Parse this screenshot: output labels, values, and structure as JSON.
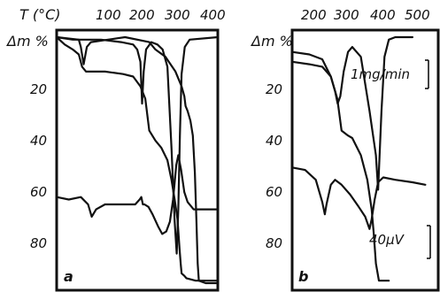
{
  "chart_data": [
    {
      "panel": "a",
      "type": "line",
      "x_axis_label": "T (°C)",
      "y_axis_label": "Δm %",
      "x_ticks": [
        "100",
        "200",
        "300",
        "400"
      ],
      "y_ticks": [
        "20",
        "40",
        "60",
        "80"
      ],
      "ylim": [
        0,
        100
      ],
      "ylim_inverted": true,
      "grid": false,
      "series": [
        {
          "values": [
            [
              40,
              0
            ],
            [
              95,
              1
            ],
            [
              100,
              4
            ],
            [
              107,
              11
            ],
            [
              115,
              4
            ],
            [
              125,
              2
            ],
            [
              210,
              0
            ],
            [
              270,
              2
            ],
            [
              285,
              5
            ],
            [
              310,
              8
            ],
            [
              335,
              14
            ],
            [
              350,
              20
            ],
            [
              357,
              24
            ],
            [
              360,
              28
            ],
            [
              365,
              30
            ],
            [
              372,
              34
            ],
            [
              378,
              40
            ],
            [
              383,
              55
            ],
            [
              387,
              75
            ],
            [
              390,
              92
            ],
            [
              393,
              99
            ],
            [
              410,
              100
            ],
            [
              440,
              100
            ]
          ]
        },
        {
          "values": [
            [
              40,
              0
            ],
            [
              60,
              3
            ],
            [
              80,
              5
            ],
            [
              95,
              7
            ],
            [
              103,
              12
            ],
            [
              113,
              14
            ],
            [
              160,
              14
            ],
            [
              205,
              15
            ],
            [
              230,
              16
            ],
            [
              248,
              20
            ],
            [
              260,
              25
            ],
            [
              270,
              38
            ],
            [
              285,
              42
            ],
            [
              300,
              45
            ],
            [
              315,
              50
            ],
            [
              325,
              58
            ],
            [
              333,
              66
            ],
            [
              340,
              74
            ],
            [
              345,
              86
            ],
            [
              348,
              92
            ],
            [
              350,
              96
            ],
            [
              357,
              97
            ],
            [
              362,
              98
            ],
            [
              385,
              99
            ],
            [
              440,
              99
            ]
          ]
        },
        {
          "values": [
            [
              40,
              0
            ],
            [
              80,
              1
            ],
            [
              150,
              1
            ],
            [
              200,
              2
            ],
            [
              230,
              3
            ],
            [
              240,
              5
            ],
            [
              248,
              10
            ],
            [
              252,
              27
            ],
            [
              256,
              14
            ],
            [
              262,
              5
            ],
            [
              275,
              2
            ],
            [
              290,
              3
            ],
            [
              303,
              5
            ],
            [
              315,
              12
            ],
            [
              325,
              45
            ],
            [
              333,
              75
            ],
            [
              338,
              88
            ],
            [
              342,
              70
            ],
            [
              346,
              40
            ],
            [
              350,
              15
            ],
            [
              358,
              4
            ],
            [
              370,
              1
            ],
            [
              440,
              0
            ]
          ]
        },
        {
          "values": [
            [
              40,
              65
            ],
            [
              70,
              66
            ],
            [
              100,
              65
            ],
            [
              118,
              68
            ],
            [
              127,
              73
            ],
            [
              138,
              70
            ],
            [
              160,
              68
            ],
            [
              200,
              68
            ],
            [
              235,
              68
            ],
            [
              246,
              66
            ],
            [
              250,
              65
            ],
            [
              254,
              68
            ],
            [
              258,
              68
            ],
            [
              268,
              69
            ],
            [
              278,
              72
            ],
            [
              292,
              77
            ],
            [
              302,
              80
            ],
            [
              312,
              79
            ],
            [
              321,
              75
            ],
            [
              329,
              66
            ],
            [
              337,
              52
            ],
            [
              342,
              48
            ],
            [
              349,
              54
            ],
            [
              357,
              63
            ],
            [
              365,
              67
            ],
            [
              380,
              70
            ],
            [
              410,
              70
            ],
            [
              440,
              70
            ]
          ]
        }
      ]
    },
    {
      "panel": "b",
      "type": "line",
      "x_axis_label": "",
      "y_axis_label": "Δm %",
      "x_ticks": [
        "200",
        "300",
        "400",
        "500"
      ],
      "y_ticks": [
        "20",
        "40",
        "60",
        "80"
      ],
      "ylim": [
        0,
        100
      ],
      "ylim_inverted": true,
      "grid": false,
      "annotations": [
        "1mg/min",
        "40μV"
      ],
      "series": [
        {
          "values": [
            [
              160,
              6
            ],
            [
              200,
              7
            ],
            [
              230,
              9
            ],
            [
              250,
              16
            ],
            [
              260,
              22
            ],
            [
              266,
              27
            ],
            [
              272,
              24
            ],
            [
              280,
              14
            ],
            [
              290,
              6
            ],
            [
              300,
              4
            ],
            [
              320,
              8
            ],
            [
              340,
              30
            ],
            [
              355,
              48
            ],
            [
              360,
              62
            ],
            [
              368,
              30
            ],
            [
              375,
              8
            ],
            [
              385,
              1
            ],
            [
              400,
              0
            ],
            [
              440,
              0
            ]
          ]
        },
        {
          "values": [
            [
              160,
              10
            ],
            [
              200,
              11
            ],
            [
              230,
              12
            ],
            [
              250,
              16
            ],
            [
              265,
              25
            ],
            [
              275,
              38
            ],
            [
              290,
              40
            ],
            [
              300,
              41
            ],
            [
              320,
              48
            ],
            [
              335,
              58
            ],
            [
              345,
              70
            ],
            [
              350,
              80
            ],
            [
              355,
              92
            ],
            [
              362,
              99
            ],
            [
              385,
              99
            ]
          ]
        },
        {
          "values": [
            [
              160,
              53
            ],
            [
              190,
              54
            ],
            [
              215,
              58
            ],
            [
              230,
              67
            ],
            [
              236,
              72
            ],
            [
              240,
              68
            ],
            [
              250,
              60
            ],
            [
              260,
              58
            ],
            [
              275,
              60
            ],
            [
              295,
              64
            ],
            [
              315,
              69
            ],
            [
              330,
              73
            ],
            [
              340,
              78
            ],
            [
              345,
              74
            ],
            [
              352,
              66
            ],
            [
              360,
              59
            ],
            [
              372,
              57
            ],
            [
              400,
              58
            ],
            [
              440,
              59
            ],
            [
              470,
              60
            ]
          ]
        }
      ]
    }
  ],
  "annotations": {
    "x_axis_label": "T (°C)",
    "rate_label": "1mg/min",
    "dta_label": "40μV",
    "panel_a": "a",
    "panel_b": "b"
  }
}
